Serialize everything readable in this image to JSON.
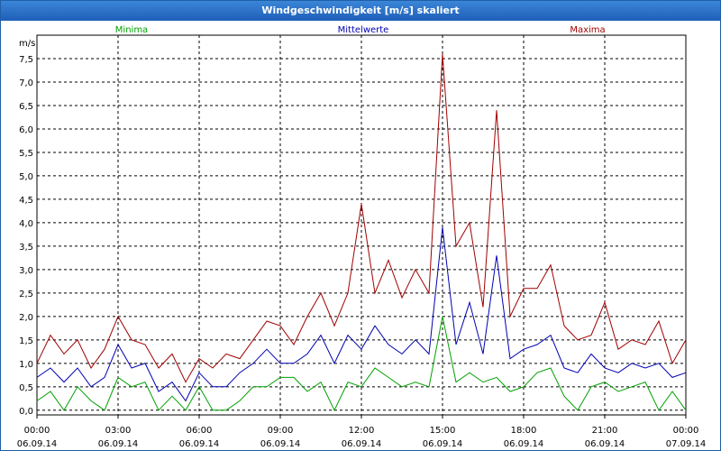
{
  "window": {
    "title": "Windgeschwindigkeit [m/s] skaliert"
  },
  "colors": {
    "minima": "#00a000",
    "mittel": "#0000b0",
    "maxima": "#a00000",
    "titlebar": "#2a6fc4"
  },
  "chart_data": {
    "type": "line",
    "ylabel": "m/s",
    "ylim": [
      -0.1,
      8.0
    ],
    "yticks": [
      0.0,
      0.5,
      1.0,
      1.5,
      2.0,
      2.5,
      3.0,
      3.5,
      4.0,
      4.5,
      5.0,
      5.5,
      6.0,
      6.5,
      7.0,
      7.5
    ],
    "ytick_labels": [
      "0,0",
      "0,5",
      "1,0",
      "1,5",
      "2,0",
      "2,5",
      "3,0",
      "3,5",
      "4,0",
      "4,5",
      "5,0",
      "5,5",
      "6,0",
      "6,5",
      "7,0",
      "7,5"
    ],
    "xlim": [
      0,
      24
    ],
    "xticks": [
      {
        "x": 0,
        "time": "00:00",
        "date": "06.09.14"
      },
      {
        "x": 3,
        "time": "03:00",
        "date": "06.09.14"
      },
      {
        "x": 6,
        "time": "06:00",
        "date": "06.09.14"
      },
      {
        "x": 9,
        "time": "09:00",
        "date": "06.09.14"
      },
      {
        "x": 12,
        "time": "12:00",
        "date": "06.09.14"
      },
      {
        "x": 15,
        "time": "15:00",
        "date": "06.09.14"
      },
      {
        "x": 18,
        "time": "18:00",
        "date": "06.09.14"
      },
      {
        "x": 21,
        "time": "21:00",
        "date": "06.09.14"
      },
      {
        "x": 24,
        "time": "00:00",
        "date": "07.09.14"
      }
    ],
    "series": [
      {
        "name": "Minima",
        "x": [
          0,
          0.5,
          1,
          1.5,
          2,
          2.5,
          3,
          3.5,
          4,
          4.5,
          5,
          5.5,
          6,
          6.5,
          7,
          7.5,
          8,
          8.5,
          9,
          9.5,
          10,
          10.5,
          11,
          11.5,
          12,
          12.5,
          13,
          13.5,
          14,
          14.5,
          15,
          15.5,
          16,
          16.5,
          17,
          17.5,
          18,
          18.5,
          19,
          19.5,
          20,
          20.5,
          21,
          21.5,
          22,
          22.5,
          23,
          23.5,
          24
        ],
        "values": [
          0.2,
          0.4,
          0.0,
          0.5,
          0.2,
          0.0,
          0.7,
          0.5,
          0.6,
          0.0,
          0.3,
          0.0,
          0.5,
          0.0,
          0.0,
          0.2,
          0.5,
          0.5,
          0.7,
          0.7,
          0.4,
          0.6,
          0.0,
          0.6,
          0.5,
          0.9,
          0.7,
          0.5,
          0.6,
          0.5,
          2.0,
          0.6,
          0.8,
          0.6,
          0.7,
          0.4,
          0.5,
          0.8,
          0.9,
          0.3,
          0.0,
          0.5,
          0.6,
          0.4,
          0.5,
          0.6,
          0.0,
          0.4,
          0.0
        ]
      },
      {
        "name": "Mittelwerte",
        "x": [
          0,
          0.5,
          1,
          1.5,
          2,
          2.5,
          3,
          3.5,
          4,
          4.5,
          5,
          5.5,
          6,
          6.5,
          7,
          7.5,
          8,
          8.5,
          9,
          9.5,
          10,
          10.5,
          11,
          11.5,
          12,
          12.5,
          13,
          13.5,
          14,
          14.5,
          15,
          15.5,
          16,
          16.5,
          17,
          17.5,
          18,
          18.5,
          19,
          19.5,
          20,
          20.5,
          21,
          21.5,
          22,
          22.5,
          23,
          23.5,
          24
        ],
        "values": [
          0.7,
          0.9,
          0.6,
          0.9,
          0.5,
          0.7,
          1.4,
          0.9,
          1.0,
          0.4,
          0.6,
          0.2,
          0.8,
          0.5,
          0.5,
          0.8,
          1.0,
          1.3,
          1.0,
          1.0,
          1.2,
          1.6,
          1.0,
          1.6,
          1.3,
          1.8,
          1.4,
          1.2,
          1.5,
          1.2,
          3.9,
          1.4,
          2.3,
          1.2,
          3.3,
          1.1,
          1.3,
          1.4,
          1.6,
          0.9,
          0.8,
          1.2,
          0.9,
          0.8,
          1.0,
          0.9,
          1.0,
          0.7,
          0.8
        ]
      },
      {
        "name": "Maxima",
        "x": [
          0,
          0.5,
          1,
          1.5,
          2,
          2.5,
          3,
          3.5,
          4,
          4.5,
          5,
          5.5,
          6,
          6.5,
          7,
          7.5,
          8,
          8.5,
          9,
          9.5,
          10,
          10.5,
          11,
          11.5,
          12,
          12.5,
          13,
          13.5,
          14,
          14.5,
          15,
          15.5,
          16,
          16.5,
          17,
          17.5,
          18,
          18.5,
          19,
          19.5,
          20,
          20.5,
          21,
          21.5,
          22,
          22.5,
          23,
          23.5,
          24
        ],
        "values": [
          1.0,
          1.6,
          1.2,
          1.5,
          0.9,
          1.3,
          2.0,
          1.5,
          1.4,
          0.9,
          1.2,
          0.6,
          1.1,
          0.9,
          1.2,
          1.1,
          1.5,
          1.9,
          1.8,
          1.4,
          2.0,
          2.5,
          1.8,
          2.5,
          4.4,
          2.5,
          3.2,
          2.4,
          3.0,
          2.5,
          7.6,
          3.5,
          4.0,
          2.2,
          6.4,
          2.0,
          2.6,
          2.6,
          3.1,
          1.8,
          1.5,
          1.6,
          2.3,
          1.3,
          1.5,
          1.4,
          1.9,
          1.0,
          1.5
        ]
      }
    ]
  }
}
